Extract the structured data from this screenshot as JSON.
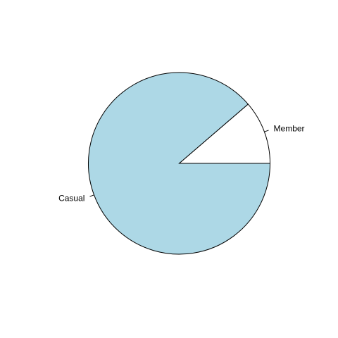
{
  "chart_data": {
    "type": "pie",
    "title": "",
    "labels": [
      "Member",
      "Casual"
    ],
    "values": [
      0.113,
      0.887
    ],
    "colors": [
      "#ffffff",
      "#add8e6"
    ],
    "start_angle_deg": 0,
    "direction": "counterclockwise",
    "outline_color": "#000000",
    "legend": "none"
  }
}
